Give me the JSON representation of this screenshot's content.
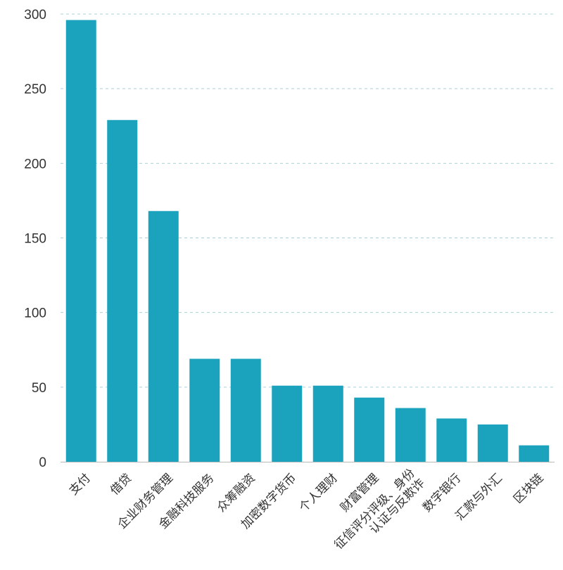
{
  "chart_data": {
    "type": "bar",
    "categories": [
      "支付",
      "借贷",
      "企业财务管理",
      "金融科技服务",
      "众筹融资",
      "加密数字货币",
      "个人理财",
      "财富管理",
      "征信评分评级、身份认证与反欺诈",
      "数字银行",
      "汇款与外汇",
      "区块链"
    ],
    "values": [
      296,
      229,
      168,
      69,
      69,
      51,
      51,
      43,
      36,
      29,
      25,
      11
    ],
    "yticks": [
      0,
      50,
      100,
      150,
      200,
      250,
      300
    ],
    "ylim": [
      0,
      300
    ],
    "title": "",
    "xlabel": "",
    "ylabel": "",
    "grid": true,
    "bar_color": "#1ba3bd",
    "grid_color": "#a9d3dc"
  }
}
